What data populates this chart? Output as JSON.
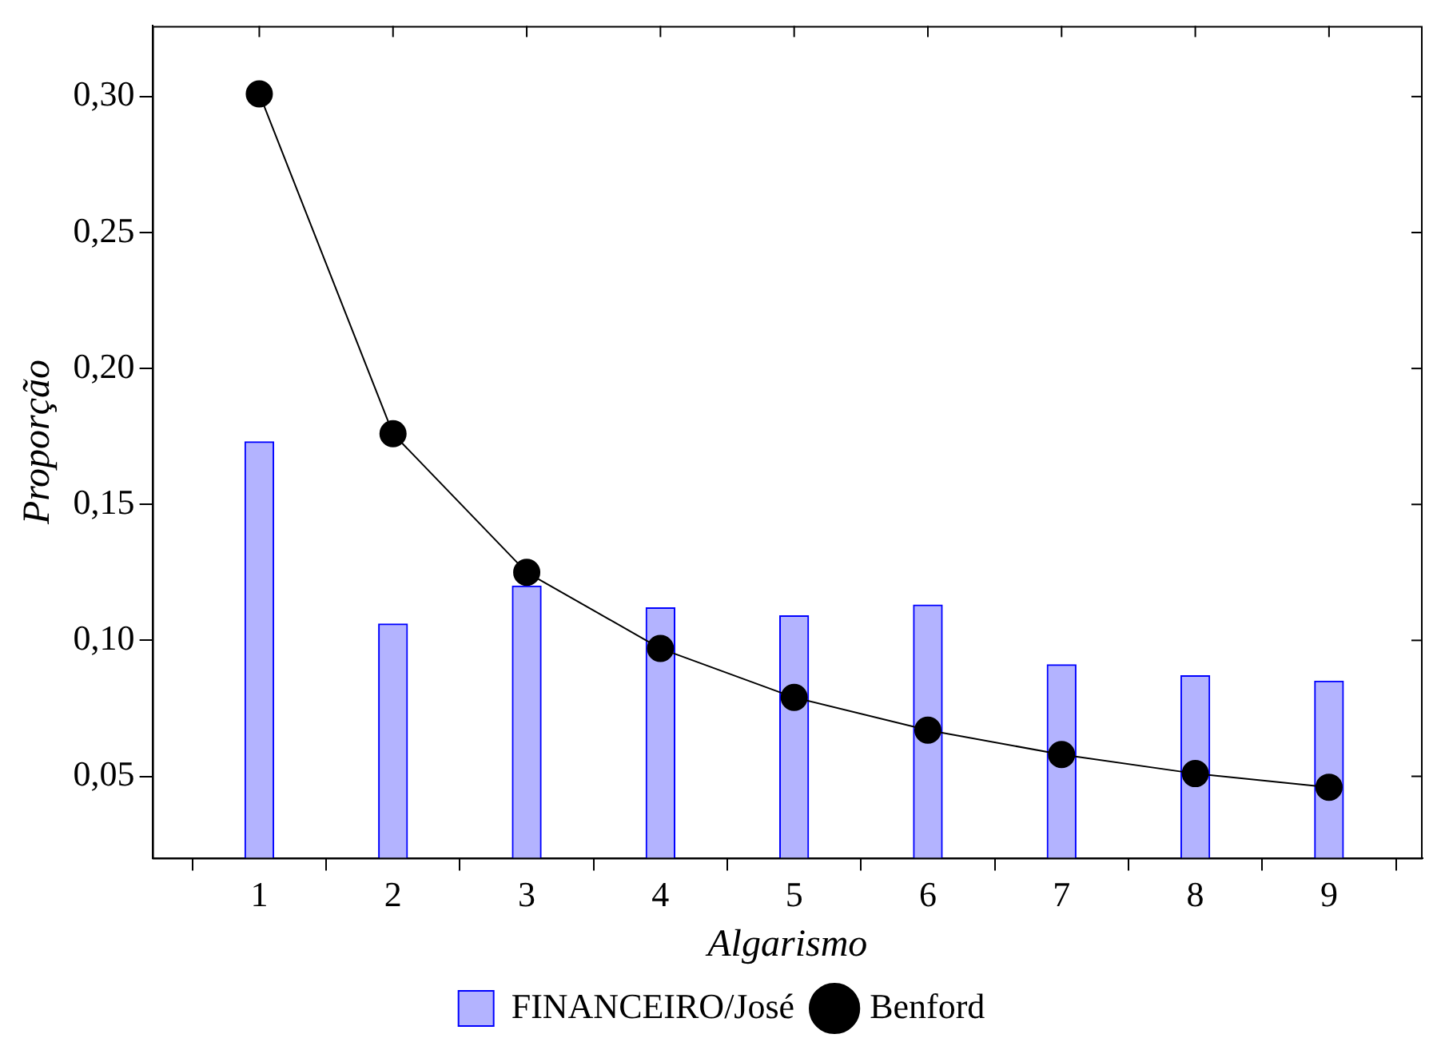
{
  "chart_data": {
    "type": "bar",
    "xlabel": "Algarismo",
    "ylabel": "Proporção",
    "x": [
      1,
      2,
      3,
      4,
      5,
      6,
      7,
      8,
      9
    ],
    "series": [
      {
        "name": "FINANCEIRO/José",
        "color": "#b3b3ff",
        "values": [
          0.173,
          0.106,
          0.12,
          0.112,
          0.109,
          0.113,
          0.091,
          0.087,
          0.085
        ]
      },
      {
        "name": "Benford",
        "type": "line",
        "color": "#000000",
        "marker": "circle",
        "values": [
          0.301,
          0.176,
          0.125,
          0.097,
          0.079,
          0.067,
          0.058,
          0.051,
          0.046
        ]
      }
    ],
    "xlim": [
      0.2,
      9.7
    ],
    "xticks": [
      1,
      2,
      3,
      4,
      5,
      6,
      7,
      8,
      9
    ],
    "ylim": [
      0.02,
      0.326
    ],
    "yticks": [
      {
        "value": 0.05,
        "label": "0,05"
      },
      {
        "value": 0.1,
        "label": "0,10"
      },
      {
        "value": 0.15,
        "label": "0,15"
      },
      {
        "value": 0.2,
        "label": "0,20"
      },
      {
        "value": 0.25,
        "label": "0,25"
      },
      {
        "value": 0.3,
        "label": "0,30"
      }
    ],
    "grid": false,
    "legend": "bottom"
  }
}
